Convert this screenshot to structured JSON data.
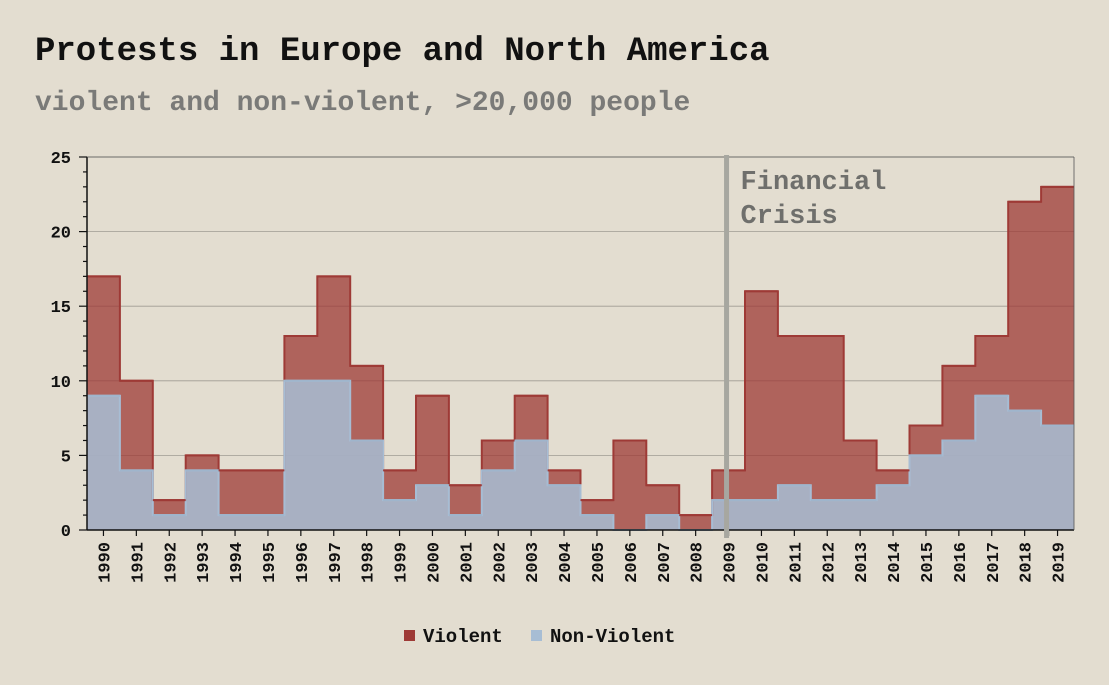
{
  "chart_data": {
    "type": "area",
    "step": true,
    "stacked": true,
    "title": "Protests in Europe and North America",
    "subtitle": "violent and non-violent, >20,000 people",
    "x": [
      1990,
      1991,
      1992,
      1993,
      1994,
      1995,
      1996,
      1997,
      1998,
      1999,
      2000,
      2001,
      2002,
      2003,
      2004,
      2005,
      2006,
      2007,
      2008,
      2009,
      2010,
      2011,
      2012,
      2013,
      2014,
      2015,
      2016,
      2017,
      2018,
      2019
    ],
    "series": [
      {
        "name": "Violent",
        "color": "#9e3a36",
        "values": [
          8,
          6,
          1,
          1,
          3,
          3,
          3,
          7,
          5,
          2,
          6,
          2,
          2,
          3,
          1,
          1,
          6,
          2,
          1,
          2,
          14,
          10,
          11,
          4,
          1,
          2,
          5,
          4,
          14,
          16
        ]
      },
      {
        "name": "Non-Violent",
        "color": "#a7bdd4",
        "values": [
          9,
          4,
          1,
          4,
          1,
          1,
          10,
          10,
          6,
          2,
          3,
          1,
          4,
          6,
          3,
          1,
          0,
          1,
          0,
          2,
          2,
          3,
          2,
          2,
          3,
          5,
          6,
          9,
          8,
          7
        ]
      }
    ],
    "totals": [
      17,
      10,
      2,
      5,
      4,
      4,
      13,
      17,
      11,
      4,
      9,
      3,
      6,
      9,
      4,
      2,
      6,
      3,
      1,
      4,
      16,
      13,
      13,
      6,
      4,
      7,
      11,
      13,
      22,
      23
    ],
    "ylim": [
      0,
      25
    ],
    "yticks": [
      0,
      5,
      10,
      15,
      20,
      25
    ],
    "grid": true,
    "legend_position": "bottom-center",
    "annotation": {
      "x": 2009,
      "lines": [
        "Financial",
        "Crisis"
      ],
      "color": "#a7a7a0"
    }
  }
}
